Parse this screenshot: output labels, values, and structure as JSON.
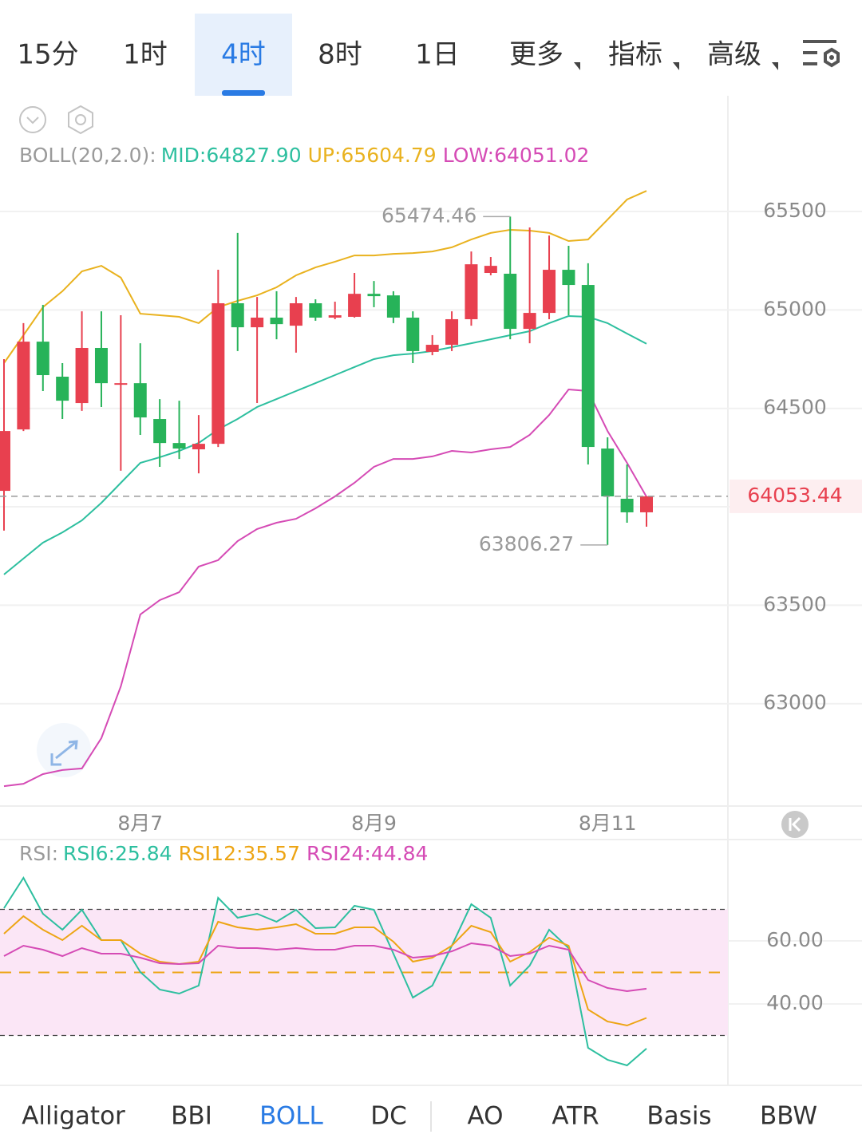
{
  "tabs": {
    "active": 2,
    "items": [
      {
        "text": "15分",
        "dropdown": false
      },
      {
        "text": "1时",
        "dropdown": false
      },
      {
        "text": "4时",
        "dropdown": false
      },
      {
        "text": "8时",
        "dropdown": false
      },
      {
        "text": "1日",
        "dropdown": false
      },
      {
        "text": "更多",
        "dropdown": true
      },
      {
        "text": "指标",
        "dropdown": true
      },
      {
        "text": "高级",
        "dropdown": true
      }
    ]
  },
  "chart_data": [
    {
      "type": "candlestick",
      "legend_title": "BOLL(20,2.0):",
      "categories": [
        null,
        null,
        null,
        null,
        null,
        null,
        null,
        "8月7",
        null,
        null,
        null,
        null,
        null,
        null,
        null,
        null,
        null,
        null,
        null,
        "8月9",
        null,
        null,
        null,
        null,
        null,
        null,
        null,
        null,
        null,
        null,
        null,
        "8月11",
        null,
        null
      ],
      "up_color": "#e8404f",
      "down_color": "#27b359",
      "candles": [
        {
          "open": 64081,
          "high": 64750,
          "low": 63879,
          "close": 64385
        },
        {
          "open": 64393,
          "high": 64933,
          "low": 64385,
          "close": 64839
        },
        {
          "open": 64839,
          "high": 65026,
          "low": 64588,
          "close": 64669
        },
        {
          "open": 64661,
          "high": 64730,
          "low": 64446,
          "close": 64539
        },
        {
          "open": 64527,
          "high": 64993,
          "low": 64487,
          "close": 64807
        },
        {
          "open": 64807,
          "high": 64993,
          "low": 64507,
          "close": 64628
        },
        {
          "open": 64620,
          "high": 64973,
          "low": 64183,
          "close": 64628
        },
        {
          "open": 64628,
          "high": 64831,
          "low": 64365,
          "close": 64454
        },
        {
          "open": 64446,
          "high": 64547,
          "low": 64203,
          "close": 64324
        },
        {
          "open": 64324,
          "high": 64539,
          "low": 64243,
          "close": 64296
        },
        {
          "open": 64292,
          "high": 64466,
          "low": 64170,
          "close": 64320
        },
        {
          "open": 64320,
          "high": 65204,
          "low": 64304,
          "close": 65034
        },
        {
          "open": 65034,
          "high": 65391,
          "low": 64791,
          "close": 64912
        },
        {
          "open": 64912,
          "high": 65066,
          "low": 64527,
          "close": 64961
        },
        {
          "open": 64961,
          "high": 65095,
          "low": 64851,
          "close": 64928
        },
        {
          "open": 64920,
          "high": 65066,
          "low": 64783,
          "close": 65034
        },
        {
          "open": 65034,
          "high": 65054,
          "low": 64945,
          "close": 64961
        },
        {
          "open": 64961,
          "high": 65042,
          "low": 64953,
          "close": 64973
        },
        {
          "open": 64965,
          "high": 65188,
          "low": 64961,
          "close": 65082
        },
        {
          "open": 65082,
          "high": 65147,
          "low": 65014,
          "close": 65070
        },
        {
          "open": 65074,
          "high": 65095,
          "low": 64933,
          "close": 64961
        },
        {
          "open": 64961,
          "high": 64993,
          "low": 64730,
          "close": 64791
        },
        {
          "open": 64787,
          "high": 64872,
          "low": 64770,
          "close": 64823
        },
        {
          "open": 64823,
          "high": 64993,
          "low": 64791,
          "close": 64953
        },
        {
          "open": 64953,
          "high": 65297,
          "low": 64920,
          "close": 65232
        },
        {
          "open": 65188,
          "high": 65269,
          "low": 65176,
          "close": 65224
        },
        {
          "open": 65184,
          "high": 65474.46,
          "low": 64851,
          "close": 64904
        },
        {
          "open": 64904,
          "high": 65419,
          "low": 64831,
          "close": 64985
        },
        {
          "open": 64985,
          "high": 65378,
          "low": 64953,
          "close": 65204
        },
        {
          "open": 65204,
          "high": 65326,
          "low": 64973,
          "close": 65127
        },
        {
          "open": 65127,
          "high": 65237,
          "low": 64215,
          "close": 64304
        },
        {
          "open": 64296,
          "high": 64353,
          "low": 63806.27,
          "close": 64053
        },
        {
          "open": 64041,
          "high": 64215,
          "low": 63919,
          "close": 63972
        },
        {
          "open": 63972,
          "high": 64053.44,
          "low": 63899,
          "close": 64053.44
        }
      ],
      "series": [
        {
          "label": "MID:64827.90",
          "color": "#2dbf9f",
          "values": [
            63656,
            63737,
            63818,
            63870,
            63931,
            64020,
            64122,
            64223,
            64252,
            64284,
            64324,
            64393,
            64446,
            64507,
            64547,
            64588,
            64628,
            64669,
            64710,
            64750,
            64770,
            64778,
            64791,
            64811,
            64831,
            64851,
            64872,
            64892,
            64933,
            64969,
            64965,
            64933,
            64880,
            64827.9
          ]
        },
        {
          "label": "UP:65604.79",
          "color": "#e9b21f",
          "values": [
            64730,
            64872,
            65014,
            65095,
            65196,
            65224,
            65164,
            64981,
            64973,
            64965,
            64933,
            65014,
            65046,
            65074,
            65115,
            65176,
            65216,
            65245,
            65277,
            65277,
            65285,
            65289,
            65297,
            65318,
            65358,
            65391,
            65407,
            65403,
            65391,
            65350,
            65358,
            65459,
            65561,
            65604.79
          ]
        },
        {
          "label": "LOW:64051.02",
          "color": "#d54bb5",
          "values": [
            62581,
            62593,
            62642,
            62663,
            62671,
            62825,
            63088,
            63453,
            63526,
            63566,
            63696,
            63729,
            63826,
            63887,
            63919,
            63939,
            63992,
            64053,
            64122,
            64203,
            64243,
            64243,
            64256,
            64284,
            64276,
            64292,
            64304,
            64365,
            64466,
            64596,
            64588,
            64385,
            64223,
            64051.02
          ]
        }
      ],
      "ylim": [
        62480,
        66088
      ],
      "yticks": [
        63000,
        63500,
        64000,
        64500,
        65000,
        65500
      ],
      "grid": true,
      "high_annotation": {
        "value": 65474.46,
        "label": "65474.46"
      },
      "low_annotation": {
        "value": 63806.27,
        "label": "63806.27"
      },
      "last_price": {
        "value": 64053.44,
        "label": "64053.44"
      }
    },
    {
      "type": "line",
      "legend_title": "RSI:",
      "series": [
        {
          "label": "RSI6:25.84",
          "color": "#2dbf9f",
          "values": [
            70.38,
            80.0,
            68.6,
            63.54,
            69.87,
            60.25,
            60.25,
            50.13,
            44.56,
            43.29,
            45.82,
            73.67,
            67.34,
            68.61,
            66.08,
            69.87,
            64.05,
            64.3,
            71.14,
            69.87,
            55.95,
            42.03,
            45.82,
            58.48,
            71.65,
            67.34,
            45.82,
            52.15,
            63.54,
            57.72,
            26.08,
            22.28,
            20.51,
            25.84
          ]
        },
        {
          "label": "RSI12:35.57",
          "color": "#eda515",
          "values": [
            62.28,
            67.85,
            63.54,
            60.25,
            64.81,
            60.25,
            60.25,
            55.95,
            53.42,
            52.66,
            53.42,
            66.08,
            64.3,
            63.54,
            64.3,
            65.32,
            62.28,
            62.28,
            64.3,
            64.3,
            59.75,
            53.42,
            54.68,
            58.48,
            64.81,
            62.78,
            53.42,
            56.46,
            61.01,
            58.48,
            38.23,
            34.43,
            33.16,
            35.57
          ]
        },
        {
          "label": "RSI24:44.84",
          "color": "#d54bb5",
          "values": [
            55.19,
            58.48,
            57.22,
            55.19,
            57.72,
            55.95,
            55.95,
            54.68,
            52.91,
            52.66,
            52.91,
            58.48,
            57.72,
            57.72,
            57.22,
            57.72,
            57.22,
            57.22,
            58.48,
            58.48,
            57.22,
            54.68,
            55.19,
            56.71,
            59.24,
            58.48,
            55.19,
            55.95,
            58.48,
            57.22,
            47.59,
            45.06,
            44.05,
            44.84
          ]
        }
      ],
      "ylim": [
        14.18,
        92.15
      ],
      "yticks": [
        {
          "value": 40,
          "label": "40.00"
        },
        {
          "value": 60,
          "label": "60.00"
        }
      ],
      "band": {
        "upper": 70,
        "lower": 30,
        "mid": 50,
        "color": "#fbe6f6"
      }
    }
  ],
  "bottom_tabs": {
    "active": 2,
    "items": [
      "Alligator",
      "BBI",
      "BOLL",
      "DC",
      "AO",
      "ATR",
      "Basis",
      "BBW"
    ]
  }
}
